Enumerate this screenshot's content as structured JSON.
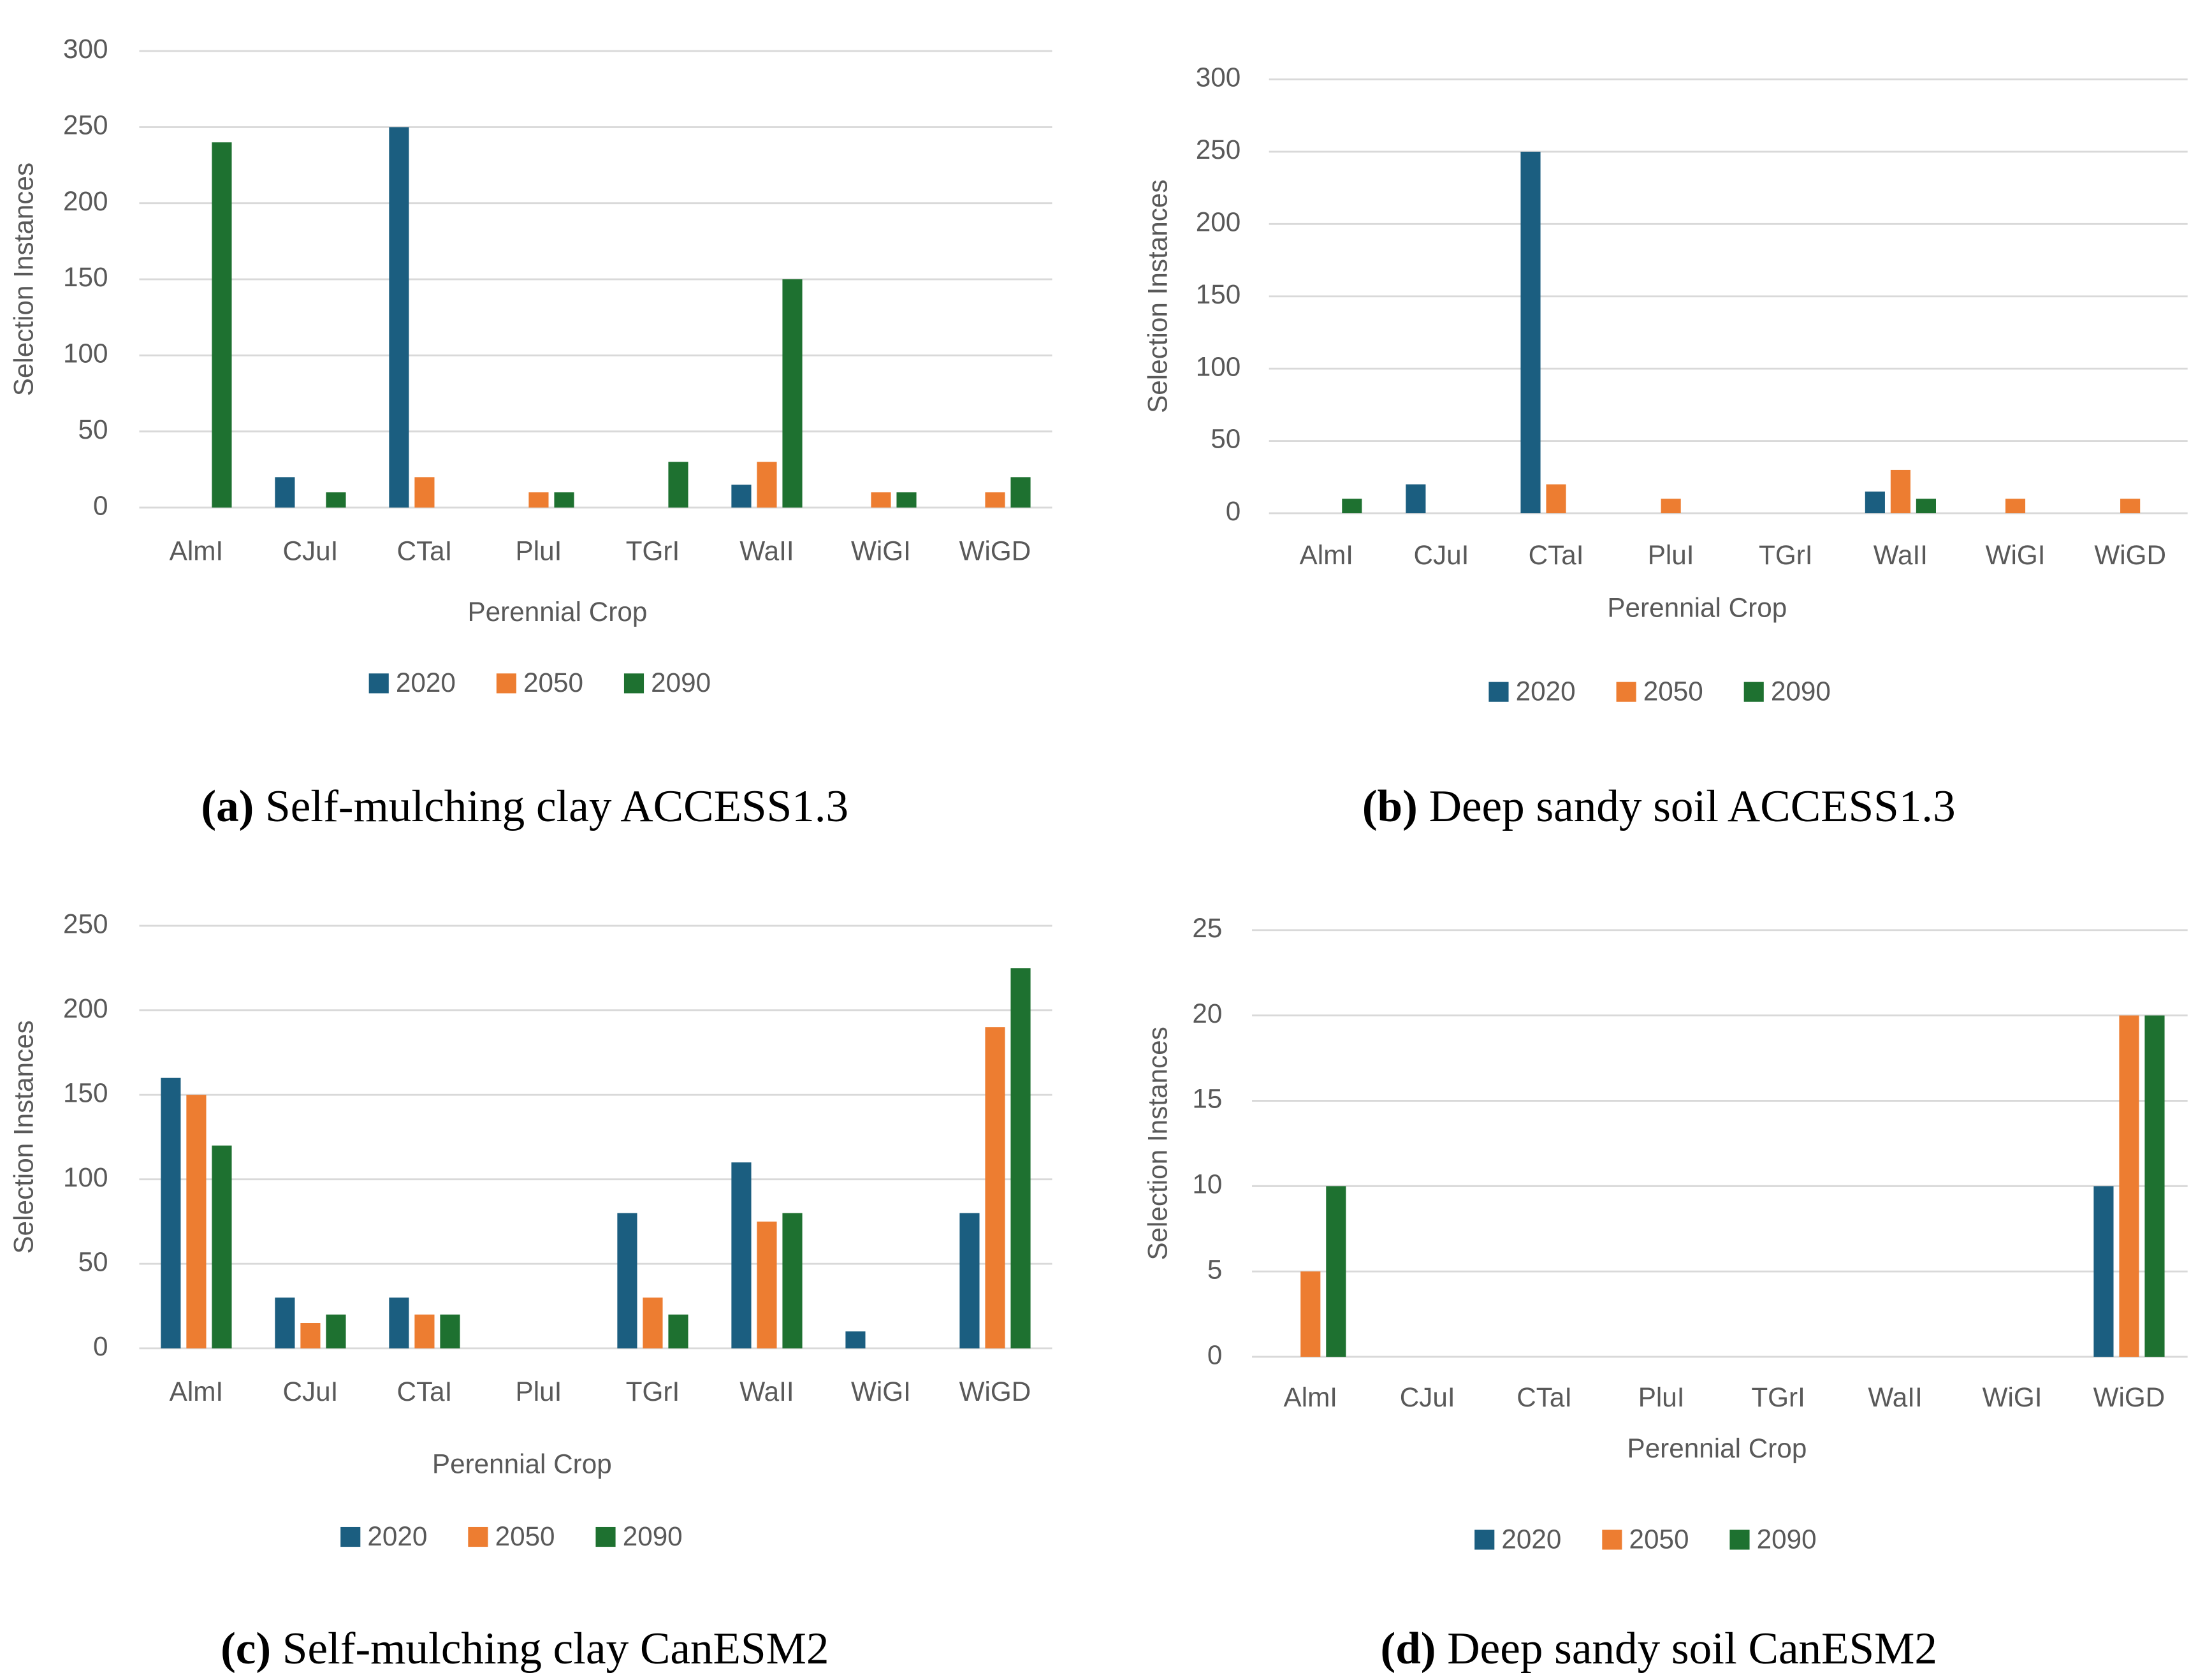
{
  "chart_data": [
    {
      "type": "bar",
      "label": "(a)",
      "caption": "Self-mulching clay ACCESS1.3",
      "x_label": "Perennial Crop",
      "y_label": "Selection Instances",
      "categories": [
        "AlmI",
        "CJuI",
        "CTaI",
        "PluI",
        "TGrI",
        "WaII",
        "WiGI",
        "WiGD"
      ],
      "series": [
        {
          "name": "2020",
          "color": "#1b5e80",
          "values": [
            0,
            20,
            250,
            0,
            0,
            15,
            0,
            0
          ]
        },
        {
          "name": "2050",
          "color": "#ed7d31",
          "values": [
            0,
            0,
            20,
            10,
            0,
            30,
            10,
            10
          ]
        },
        {
          "name": "2090",
          "color": "#1e7130",
          "values": [
            240,
            10,
            0,
            10,
            30,
            150,
            10,
            20
          ]
        }
      ],
      "ylim": [
        0,
        300
      ],
      "yticks": [
        0,
        50,
        100,
        150,
        200,
        250,
        300
      ],
      "grid": true
    },
    {
      "type": "bar",
      "label": "(b)",
      "caption": "Deep sandy soil ACCESS1.3",
      "x_label": "Perennial Crop",
      "y_label": "Selection Instances",
      "categories": [
        "AlmI",
        "CJuI",
        "CTaI",
        "PluI",
        "TGrI",
        "WaII",
        "WiGI",
        "WiGD"
      ],
      "series": [
        {
          "name": "2020",
          "color": "#1b5e80",
          "values": [
            0,
            20,
            250,
            0,
            0,
            15,
            0,
            0
          ]
        },
        {
          "name": "2050",
          "color": "#ed7d31",
          "values": [
            0,
            0,
            20,
            10,
            0,
            30,
            10,
            10
          ]
        },
        {
          "name": "2090",
          "color": "#1e7130",
          "values": [
            10,
            0,
            0,
            0,
            0,
            10,
            0,
            0
          ]
        }
      ],
      "ylim": [
        0,
        300
      ],
      "yticks": [
        0,
        50,
        100,
        150,
        200,
        250,
        300
      ],
      "grid": true
    },
    {
      "type": "bar",
      "label": "(c)",
      "caption": "Self-mulching clay CanESM2",
      "x_label": "Perennial Crop",
      "y_label": "Selection Instances",
      "categories": [
        "AlmI",
        "CJuI",
        "CTaI",
        "PluI",
        "TGrI",
        "WaII",
        "WiGI",
        "WiGD"
      ],
      "series": [
        {
          "name": "2020",
          "color": "#1b5e80",
          "values": [
            160,
            30,
            30,
            0,
            80,
            110,
            10,
            80
          ]
        },
        {
          "name": "2050",
          "color": "#ed7d31",
          "values": [
            150,
            15,
            20,
            0,
            30,
            75,
            0,
            190
          ]
        },
        {
          "name": "2090",
          "color": "#1e7130",
          "values": [
            120,
            20,
            20,
            0,
            20,
            80,
            0,
            225
          ]
        }
      ],
      "ylim": [
        0,
        250
      ],
      "yticks": [
        0,
        50,
        100,
        150,
        200,
        250
      ],
      "grid": true
    },
    {
      "type": "bar",
      "label": "(d)",
      "caption": "Deep sandy soil CanESM2",
      "x_label": "Perennial Crop",
      "y_label": "Selection Instances",
      "categories": [
        "AlmI",
        "CJuI",
        "CTaI",
        "PluI",
        "TGrI",
        "WaII",
        "WiGI",
        "WiGD"
      ],
      "series": [
        {
          "name": "2020",
          "color": "#1b5e80",
          "values": [
            0,
            0,
            0,
            0,
            0,
            0,
            0,
            10
          ]
        },
        {
          "name": "2050",
          "color": "#ed7d31",
          "values": [
            5,
            0,
            0,
            0,
            0,
            0,
            0,
            20
          ]
        },
        {
          "name": "2090",
          "color": "#1e7130",
          "values": [
            10,
            0,
            0,
            0,
            0,
            0,
            0,
            20
          ]
        }
      ],
      "ylim": [
        0,
        25
      ],
      "yticks": [
        0,
        5,
        10,
        15,
        20,
        25
      ],
      "grid": true
    }
  ]
}
